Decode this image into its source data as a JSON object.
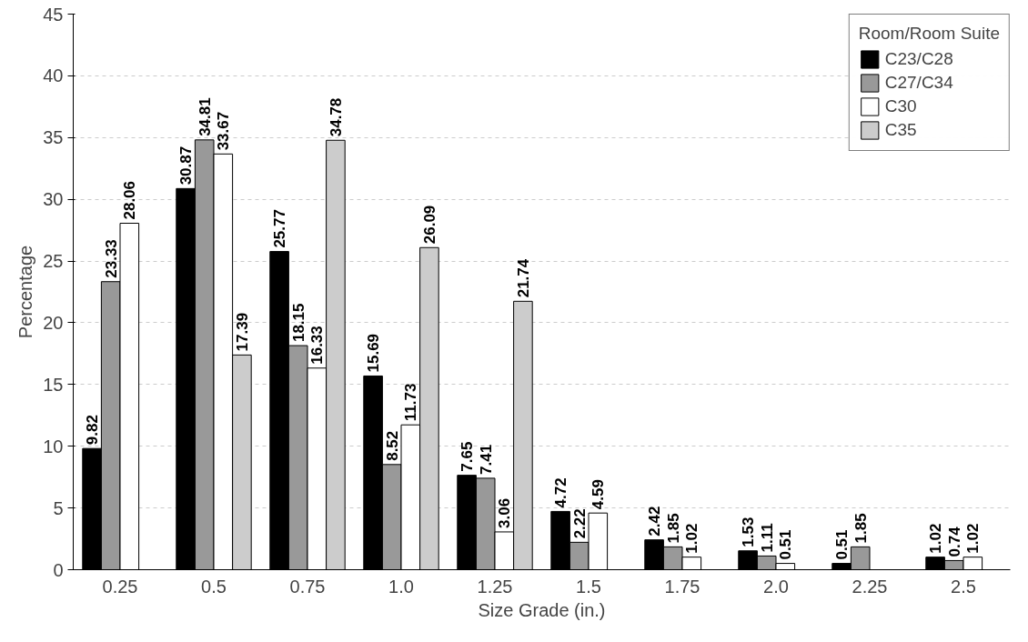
{
  "chart_data": {
    "type": "bar",
    "xlabel": "Size Grade (in.)",
    "ylabel": "Percentage",
    "legend_title": "Room/Room Suite",
    "categories": [
      "0.25",
      "0.5",
      "0.75",
      "1.0",
      "1.25",
      "1.5",
      "1.75",
      "2.0",
      "2.25",
      "2.5"
    ],
    "series": [
      {
        "name": "C23/C28",
        "color": "#000000",
        "values": [
          9.82,
          30.87,
          25.77,
          15.69,
          7.65,
          4.72,
          2.42,
          1.53,
          0.51,
          1.02
        ]
      },
      {
        "name": "C27/C34",
        "color": "#999999",
        "values": [
          23.33,
          34.81,
          18.15,
          8.52,
          7.41,
          2.22,
          1.85,
          1.11,
          1.85,
          0.74
        ]
      },
      {
        "name": "C30",
        "color": "#ffffff",
        "values": [
          28.06,
          33.67,
          16.33,
          11.73,
          3.06,
          4.59,
          1.02,
          0.51,
          null,
          1.02
        ]
      },
      {
        "name": "C35",
        "color": "#cccccc",
        "values": [
          null,
          17.39,
          34.78,
          26.09,
          21.74,
          null,
          null,
          null,
          null,
          null
        ]
      }
    ],
    "ylim": [
      0,
      45
    ],
    "yticks": [
      0,
      5,
      10,
      15,
      20,
      25,
      30,
      35,
      40,
      45
    ],
    "grid": "y",
    "legend": "top right",
    "data_labels": true
  }
}
